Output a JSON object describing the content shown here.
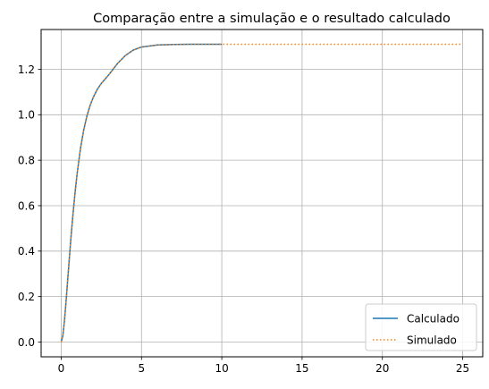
{
  "chart_data": {
    "type": "line",
    "title": "Comparação entre a simulação e o resultado calculado",
    "xlabel": "",
    "ylabel": "",
    "xlim": [
      -1.25,
      26.25
    ],
    "ylim": [
      -0.065,
      1.375
    ],
    "x_ticks": [
      0,
      5,
      10,
      15,
      20,
      25
    ],
    "x_tick_labels": [
      "0",
      "5",
      "10",
      "15",
      "20",
      "25"
    ],
    "y_ticks": [
      0.0,
      0.2,
      0.4,
      0.6,
      0.8,
      1.0,
      1.2
    ],
    "y_tick_labels": [
      "0.0",
      "0.2",
      "0.4",
      "0.6",
      "0.8",
      "1.0",
      "1.2"
    ],
    "grid": true,
    "legend_position": "bottom-right",
    "series": [
      {
        "name": "Calculado",
        "style": "solid",
        "color": "#1f77b4",
        "x": [
          0,
          0.1,
          0.2,
          0.3,
          0.4,
          0.5,
          0.6,
          0.7,
          0.8,
          0.9,
          1.0,
          1.2,
          1.4,
          1.6,
          1.8,
          2.0,
          2.25,
          2.5,
          2.75,
          3.0,
          3.5,
          4.0,
          4.5,
          5.0,
          6.0,
          7.0,
          8.0,
          9.0,
          10.0
        ],
        "y": [
          0.0,
          0.026,
          0.091,
          0.176,
          0.269,
          0.362,
          0.452,
          0.535,
          0.612,
          0.682,
          0.745,
          0.851,
          0.932,
          0.994,
          1.041,
          1.077,
          1.112,
          1.138,
          1.158,
          1.179,
          1.225,
          1.261,
          1.285,
          1.298,
          1.307,
          1.309,
          1.31,
          1.31,
          1.31
        ]
      },
      {
        "name": "Simulado",
        "style": "dotted",
        "color": "#ff7f0e",
        "x": [
          0,
          0.1,
          0.2,
          0.3,
          0.4,
          0.5,
          0.6,
          0.7,
          0.8,
          0.9,
          1.0,
          1.2,
          1.4,
          1.6,
          1.8,
          2.0,
          2.25,
          2.5,
          2.75,
          3.0,
          3.5,
          4.0,
          4.5,
          5.0,
          6.0,
          7.0,
          8.0,
          9.0,
          10.0,
          15.0,
          20.0,
          25.0
        ],
        "y": [
          0.0,
          0.026,
          0.091,
          0.176,
          0.269,
          0.362,
          0.452,
          0.535,
          0.612,
          0.682,
          0.745,
          0.851,
          0.932,
          0.994,
          1.041,
          1.077,
          1.112,
          1.138,
          1.158,
          1.179,
          1.225,
          1.261,
          1.285,
          1.298,
          1.307,
          1.309,
          1.31,
          1.31,
          1.31,
          1.31,
          1.31,
          1.31
        ]
      }
    ]
  }
}
